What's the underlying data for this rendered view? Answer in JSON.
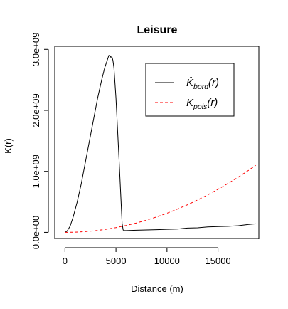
{
  "chart_data": {
    "type": "line",
    "title": "Leisure",
    "xlabel": "Distance (m)",
    "ylabel": "K(r)",
    "xlim": [
      -1000,
      19000
    ],
    "ylim": [
      -100000000.0,
      3050000000.0
    ],
    "x_ticks": [
      0,
      5000,
      10000,
      15000
    ],
    "x_tick_labels": [
      "0",
      "5000",
      "10000",
      "15000"
    ],
    "y_ticks": [
      0,
      1000000000.0,
      2000000000.0,
      3000000000.0
    ],
    "y_tick_labels": [
      "0.0e+00",
      "1.0e+09",
      "2.0e+09",
      "3.0e+09"
    ],
    "legend_position": "top-right",
    "series": [
      {
        "name": "K̂bord(r)",
        "legend_main": "K̂",
        "legend_sub": "bord",
        "legend_tail": "(r)",
        "color": "#000000",
        "dash": "solid",
        "x": [
          0,
          200,
          500,
          800,
          1200,
          1600,
          2000,
          2400,
          2800,
          3200,
          3600,
          3900,
          4100,
          4300,
          4400,
          4500,
          4600,
          4700,
          4800,
          5000,
          5300,
          5500,
          5600,
          5700,
          5800,
          6000,
          7000,
          8000,
          9000,
          10000,
          11000,
          12000,
          13000,
          14000,
          15000,
          16000,
          17000,
          18000,
          18700
        ],
        "y": [
          0,
          20000000.0,
          100000000.0,
          250000000.0,
          500000000.0,
          800000000.0,
          1150000000.0,
          1500000000.0,
          1850000000.0,
          2200000000.0,
          2500000000.0,
          2700000000.0,
          2800000000.0,
          2900000000.0,
          2900000000.0,
          2870000000.0,
          2880000000.0,
          2820000000.0,
          2700000000.0,
          2200000000.0,
          1200000000.0,
          500000000.0,
          150000000.0,
          40000000.0,
          30000000.0,
          30000000.0,
          35000000.0,
          40000000.0,
          45000000.0,
          50000000.0,
          55000000.0,
          70000000.0,
          75000000.0,
          90000000.0,
          95000000.0,
          100000000.0,
          110000000.0,
          130000000.0,
          140000000.0
        ]
      },
      {
        "name": "Kpois(r)",
        "legend_main": "K",
        "legend_sub": "pois",
        "legend_tail": "(r)",
        "color": "#ff0000",
        "dash": "dashed",
        "formula": "pi*r^2",
        "x": [
          0,
          1000,
          2000,
          3000,
          4000,
          5000,
          6000,
          7000,
          8000,
          9000,
          10000,
          11000,
          12000,
          13000,
          14000,
          15000,
          16000,
          17000,
          18000,
          18700
        ],
        "y": [
          0,
          3141593,
          12566371,
          28274334,
          50265482,
          78539816,
          113097336,
          153938040,
          201061930,
          254469005,
          314159265,
          380132711,
          452389342,
          530929158,
          615752160,
          706858347,
          804247719,
          907920277,
          1017876020,
          1098583923
        ]
      }
    ]
  }
}
